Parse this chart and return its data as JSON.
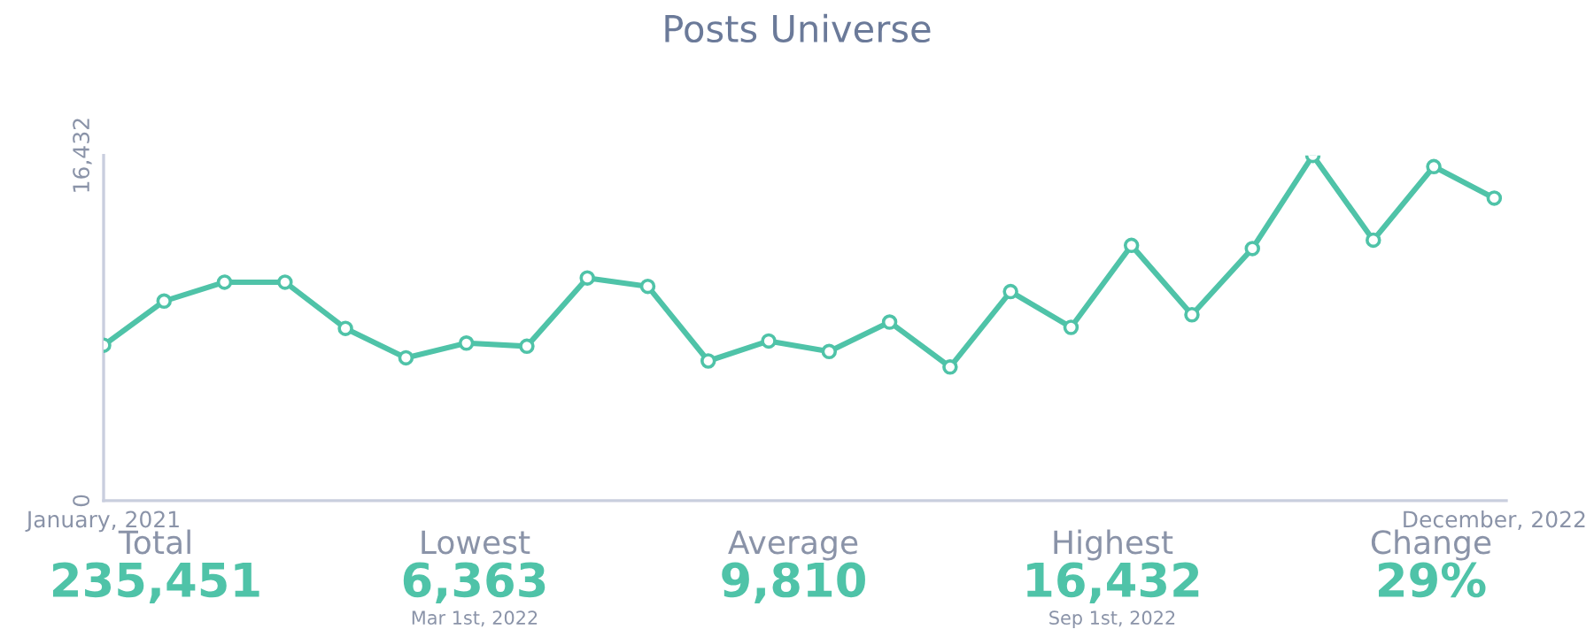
{
  "chart_data": {
    "type": "line",
    "title": "Posts Universe",
    "categories": [
      "January, 2021",
      null,
      null,
      null,
      null,
      null,
      null,
      null,
      null,
      null,
      null,
      null,
      null,
      null,
      null,
      null,
      null,
      null,
      null,
      null,
      null,
      null,
      null,
      "December, 2022"
    ],
    "series": [
      {
        "color": "#4fc3a8",
        "values": [
          7400,
          9500,
          10400,
          10400,
          8200,
          6800,
          7500,
          7350,
          10600,
          10200,
          6650,
          7600,
          7100,
          8500,
          6363,
          9950,
          8250,
          12150,
          8850,
          12000,
          16432,
          12400,
          15900,
          14400
        ]
      }
    ],
    "ylim": [
      0,
      16432
    ],
    "yticks": [
      0,
      {
        "value": 16432,
        "label": "16,432"
      }
    ],
    "marker": "circle",
    "annotations": [
      "Total\n235,451",
      "Lowest\n6,363\nMar 1st, 2022",
      "Average\n9,810",
      "Highest\n16,432\nSep 1st, 2022",
      "Change\n29%"
    ]
  }
}
